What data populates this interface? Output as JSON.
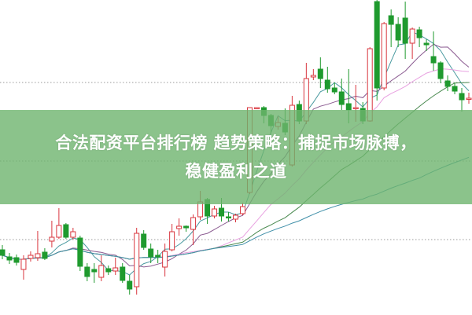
{
  "headline": {
    "line1": "合法配资平台排行榜 趋势策略：捕捉市场脉搏，",
    "line2": "稳健盈利之道"
  },
  "colors": {
    "up": "#d9363e",
    "down": "#1f9a2e",
    "banner": "#6eb46e",
    "grid": "#999999",
    "ma": [
      "#4a9aa0",
      "#8a5a90",
      "#e8a0e0",
      "#4a8a50",
      "#3f8fa8"
    ]
  },
  "chart_data": {
    "type": "candlestick",
    "title": "",
    "xlabel": "",
    "ylabel": "",
    "axes_visible": false,
    "grid": "horizontal dotted",
    "note_units": "relative price (no axis printed)",
    "ylim": [
      0,
      400
    ],
    "moving_average_periods": [
      5,
      10,
      20,
      30,
      60
    ],
    "candles": [
      [
        82,
        75,
        88,
        70
      ],
      [
        73,
        69,
        78,
        64
      ],
      [
        72,
        66,
        76,
        62
      ],
      [
        57,
        70,
        75,
        44
      ],
      [
        71,
        75,
        80,
        67
      ],
      [
        72,
        77,
        106,
        68
      ],
      [
        79,
        71,
        84,
        69
      ],
      [
        93,
        98,
        119,
        85
      ],
      [
        98,
        113,
        135,
        96
      ],
      [
        114,
        98,
        116,
        96
      ],
      [
        98,
        105,
        110,
        95
      ],
      [
        97,
        61,
        100,
        55
      ],
      [
        60,
        48,
        65,
        42
      ],
      [
        57,
        54,
        65,
        40
      ],
      [
        47,
        62,
        75,
        42
      ],
      [
        58,
        54,
        62,
        50
      ],
      [
        55,
        59,
        72,
        50
      ],
      [
        60,
        43,
        65,
        40
      ],
      [
        42,
        32,
        50,
        25
      ],
      [
        35,
        103,
        110,
        25
      ],
      [
        102,
        85,
        107,
        82
      ],
      [
        83,
        73,
        90,
        65
      ],
      [
        75,
        73,
        82,
        65
      ],
      [
        60,
        80,
        90,
        48
      ],
      [
        82,
        105,
        115,
        80
      ],
      [
        109,
        112,
        122,
        100
      ],
      [
        112,
        110,
        113,
        105
      ],
      [
        108,
        123,
        127,
        88
      ],
      [
        124,
        143,
        157,
        120
      ],
      [
        146,
        125,
        148,
        115
      ],
      [
        125,
        134,
        138,
        122
      ],
      [
        135,
        125,
        148,
        118
      ],
      [
        124,
        123,
        130,
        118
      ],
      [
        121,
        126,
        128,
        117
      ],
      [
        128,
        137,
        142,
        126
      ],
      [
        155,
        263,
        263,
        153
      ],
      [
        262,
        263,
        263,
        261
      ],
      [
        263,
        253,
        265,
        243
      ],
      [
        253,
        240,
        255,
        230
      ],
      [
        239,
        244,
        252,
        235
      ],
      [
        243,
        232,
        262,
        228
      ],
      [
        190,
        266,
        278,
        188
      ],
      [
        267,
        246,
        272,
        242
      ],
      [
        246,
        300,
        320,
        242
      ],
      [
        302,
        304,
        312,
        298
      ],
      [
        312,
        300,
        327,
        288
      ],
      [
        298,
        287,
        315,
        282
      ],
      [
        288,
        283,
        295,
        280
      ],
      [
        283,
        267,
        300,
        260
      ],
      [
        268,
        260,
        312,
        243
      ],
      [
        262,
        263,
        292,
        245
      ],
      [
        262,
        246,
        270,
        242
      ],
      [
        246,
        338,
        340,
        245
      ],
      [
        398,
        288,
        400,
        272
      ],
      [
        288,
        370,
        372,
        285
      ],
      [
        380,
        369,
        388,
        340
      ],
      [
        369,
        349,
        378,
        340
      ],
      [
        377,
        345,
        398,
        325
      ],
      [
        345,
        363,
        365,
        325
      ],
      [
        362,
        352,
        366,
        340
      ],
      [
        345,
        343,
        350,
        335
      ],
      [
        328,
        320,
        360,
        310
      ],
      [
        320,
        300,
        322,
        294
      ],
      [
        297,
        290,
        304,
        284
      ],
      [
        290,
        284,
        295,
        280
      ],
      [
        281,
        273,
        288,
        258
      ],
      [
        274,
        275,
        282,
        268
      ]
    ]
  }
}
